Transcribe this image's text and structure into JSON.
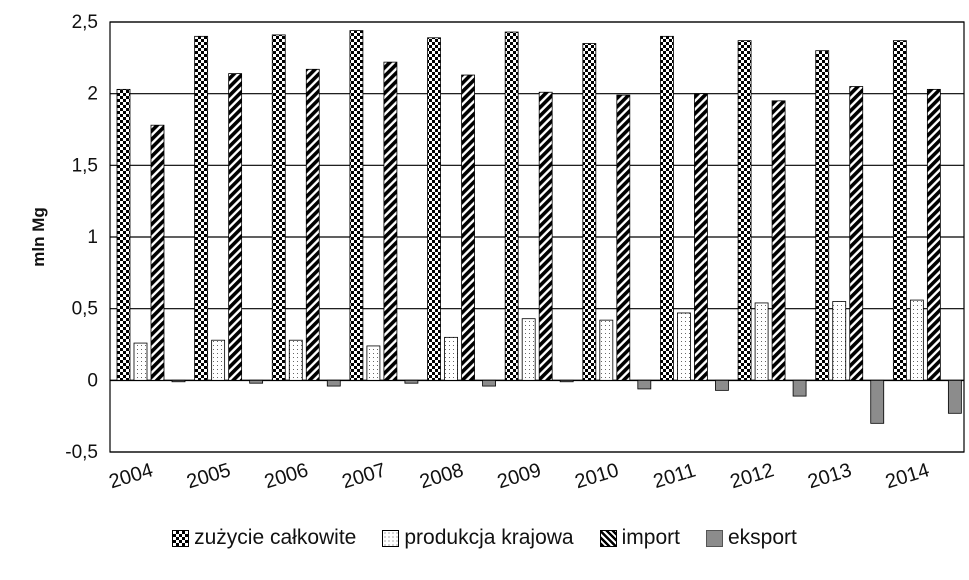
{
  "chart_data": {
    "type": "bar",
    "ylabel": "mln Mg",
    "ylim": [
      -0.5,
      2.5
    ],
    "yticks": [
      "2,5",
      "2",
      "1,5",
      "1",
      "0,5",
      "0",
      "-0,5"
    ],
    "ytick_values": [
      2.5,
      2,
      1.5,
      1,
      0.5,
      0,
      -0.5
    ],
    "categories": [
      "2004",
      "2005",
      "2006",
      "2007",
      "2008",
      "2009",
      "2010",
      "2011",
      "2012",
      "2013",
      "2014"
    ],
    "grid": true,
    "legend_position": "bottom",
    "series": [
      {
        "name": "zużycie całkowite",
        "pattern": "checker",
        "values": [
          2.03,
          2.4,
          2.41,
          2.44,
          2.39,
          2.43,
          2.35,
          2.4,
          2.37,
          2.3,
          2.37
        ]
      },
      {
        "name": "produkcja krajowa",
        "pattern": "dots",
        "values": [
          0.26,
          0.28,
          0.28,
          0.24,
          0.3,
          0.43,
          0.42,
          0.47,
          0.54,
          0.55,
          0.56
        ]
      },
      {
        "name": "import",
        "pattern": "diagonal",
        "values": [
          1.78,
          2.14,
          2.17,
          2.22,
          2.13,
          2.01,
          1.99,
          2.0,
          1.95,
          2.05,
          2.03
        ]
      },
      {
        "name": "eksport",
        "pattern": "solid",
        "color": "#8c8c8c",
        "values": [
          -0.01,
          -0.02,
          -0.04,
          -0.02,
          -0.04,
          -0.01,
          -0.06,
          -0.07,
          -0.11,
          -0.3,
          -0.23
        ]
      }
    ]
  }
}
